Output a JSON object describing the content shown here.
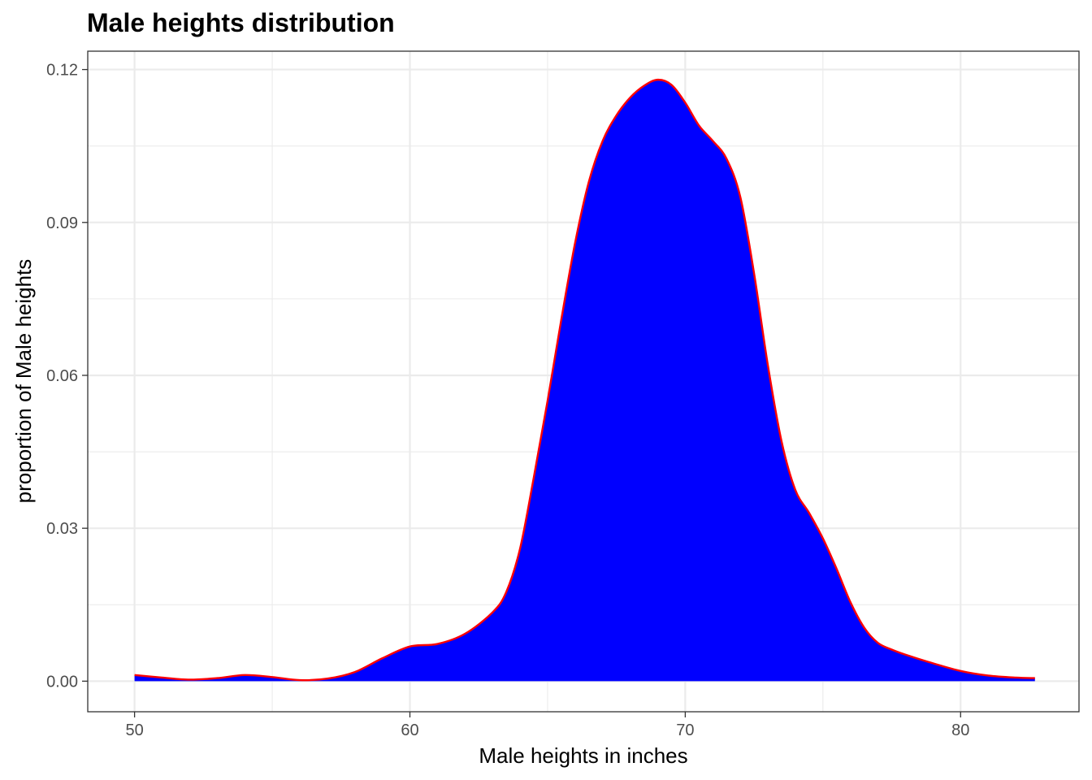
{
  "chart_data": {
    "type": "area",
    "title": "Male heights distribution",
    "xlabel": "Male heights in inches",
    "ylabel": "proportion of Male heights",
    "xlim": [
      48.3,
      84.3
    ],
    "ylim": [
      -0.006,
      0.1236
    ],
    "x_ticks": [
      50,
      60,
      70,
      80
    ],
    "x_tick_labels": [
      "50",
      "60",
      "70",
      "80"
    ],
    "y_ticks": [
      0,
      0.03,
      0.06,
      0.09,
      0.12
    ],
    "y_tick_labels": [
      "0.00",
      "0.03",
      "0.06",
      "0.09",
      "0.12"
    ],
    "x_minor_ticks": [
      55,
      65,
      75
    ],
    "y_minor_ticks": [
      0.015,
      0.045,
      0.075,
      0.105
    ],
    "grid": true,
    "legend": "none",
    "colors": {
      "fill": "#0000ff",
      "line": "#ff0000",
      "grid": "#ebebeb",
      "panel_border": "#333333"
    },
    "series": [
      {
        "x": [
          50,
          51,
          52,
          53,
          54,
          55,
          56,
          57,
          58,
          59,
          60,
          61,
          62,
          63,
          63.5,
          64,
          64.5,
          65,
          65.5,
          66,
          66.5,
          67,
          67.5,
          68,
          68.5,
          69,
          69.5,
          70,
          70.5,
          71,
          71.5,
          72,
          72.5,
          73,
          73.5,
          74,
          74.5,
          75,
          75.5,
          76,
          76.5,
          77,
          77.5,
          78,
          79,
          80,
          81,
          82,
          82.7
        ],
        "y": [
          0.0012,
          0.0007,
          0.0003,
          0.0006,
          0.0012,
          0.0008,
          0.0002,
          0.0005,
          0.0018,
          0.0045,
          0.0068,
          0.0073,
          0.0093,
          0.0135,
          0.0175,
          0.026,
          0.04,
          0.055,
          0.071,
          0.086,
          0.098,
          0.106,
          0.111,
          0.1145,
          0.1168,
          0.118,
          0.117,
          0.1135,
          0.109,
          0.106,
          0.1025,
          0.095,
          0.08,
          0.062,
          0.047,
          0.0375,
          0.033,
          0.028,
          0.022,
          0.0155,
          0.0105,
          0.0075,
          0.0062,
          0.0052,
          0.0035,
          0.002,
          0.0011,
          0.0007,
          0.0006
        ]
      }
    ]
  }
}
